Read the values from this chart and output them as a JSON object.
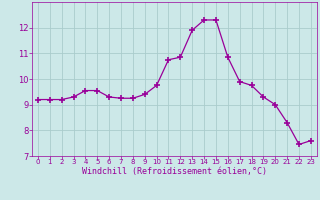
{
  "x": [
    0,
    1,
    2,
    3,
    4,
    5,
    6,
    7,
    8,
    9,
    10,
    11,
    12,
    13,
    14,
    15,
    16,
    17,
    18,
    19,
    20,
    21,
    22,
    23
  ],
  "y": [
    9.2,
    9.2,
    9.2,
    9.3,
    9.55,
    9.55,
    9.3,
    9.25,
    9.25,
    9.4,
    9.75,
    10.75,
    10.85,
    11.9,
    12.3,
    12.3,
    10.85,
    9.9,
    9.75,
    9.3,
    9.0,
    8.3,
    7.45,
    7.6
  ],
  "line_color": "#990099",
  "marker": "+",
  "marker_size": 4,
  "marker_lw": 1.2,
  "bg_color": "#cce8e8",
  "grid_color": "#aacccc",
  "xlabel": "Windchill (Refroidissement éolien,°C)",
  "xlabel_color": "#990099",
  "tick_color": "#990099",
  "label_color": "#990099",
  "ylim": [
    7,
    13
  ],
  "xlim": [
    -0.5,
    23.5
  ],
  "yticks": [
    7,
    8,
    9,
    10,
    11,
    12
  ],
  "xticks": [
    0,
    1,
    2,
    3,
    4,
    5,
    6,
    7,
    8,
    9,
    10,
    11,
    12,
    13,
    14,
    15,
    16,
    17,
    18,
    19,
    20,
    21,
    22,
    23
  ],
  "xtick_labels": [
    "0",
    "1",
    "2",
    "3",
    "4",
    "5",
    "6",
    "7",
    "8",
    "9",
    "10",
    "11",
    "12",
    "13",
    "14",
    "15",
    "16",
    "17",
    "18",
    "19",
    "20",
    "21",
    "22",
    "23"
  ]
}
